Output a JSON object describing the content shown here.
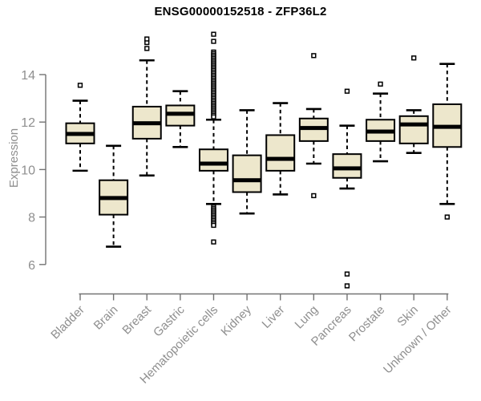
{
  "title": "ENSG00000152518 - ZFP36L2",
  "chart_data": {
    "type": "boxplot",
    "title": "ENSG00000152518 - ZFP36L2",
    "xlabel": "",
    "ylabel": "Expression",
    "ylim": [
      5.0,
      15.8
    ],
    "yticks": [
      6,
      8,
      10,
      12,
      14
    ],
    "grid": false,
    "legend": "none",
    "colors": {
      "box_fill": "#ede7cc",
      "box_stroke": "#000000",
      "median": "#000000",
      "whisker": "#000000",
      "outlier_stroke": "#000000",
      "outlier_fill": "#ffffff",
      "axis_line": "#737373",
      "tick_text": "#8f8f8f",
      "title_text": "#000000",
      "background": "#ffffff"
    },
    "categories": [
      "Bladder",
      "Brain",
      "Breast",
      "Gastric",
      "Hematopoietic cells",
      "Kidney",
      "Liver",
      "Lung",
      "Pancreas",
      "Prostate",
      "Skin",
      "Unknown / Other"
    ],
    "series": [
      {
        "name": "Bladder",
        "whisker_low": 9.95,
        "q1": 11.1,
        "median": 11.5,
        "q3": 11.95,
        "whisker_high": 12.9,
        "outliers": [
          13.55
        ]
      },
      {
        "name": "Brain",
        "whisker_low": 6.75,
        "q1": 8.1,
        "median": 8.8,
        "q3": 9.55,
        "whisker_high": 11.0,
        "outliers": []
      },
      {
        "name": "Breast",
        "whisker_low": 9.75,
        "q1": 11.3,
        "median": 11.95,
        "q3": 12.65,
        "whisker_high": 14.6,
        "outliers": [
          15.1,
          15.35,
          15.5
        ]
      },
      {
        "name": "Gastric",
        "whisker_low": 10.95,
        "q1": 11.85,
        "median": 12.35,
        "q3": 12.7,
        "whisker_high": 13.3,
        "outliers": []
      },
      {
        "name": "Hematopoietic cells",
        "whisker_low": 8.55,
        "q1": 9.95,
        "median": 10.25,
        "q3": 10.85,
        "whisker_high": 12.1,
        "outliers": [
          15.7,
          15.4,
          14.95,
          14.88,
          14.81,
          14.74,
          14.67,
          14.6,
          14.53,
          14.46,
          14.39,
          14.32,
          14.25,
          14.18,
          14.11,
          14.04,
          13.97,
          13.9,
          13.83,
          13.76,
          13.69,
          13.62,
          13.55,
          13.48,
          13.41,
          13.34,
          13.27,
          13.2,
          13.13,
          13.06,
          12.99,
          12.92,
          12.85,
          12.78,
          12.71,
          12.64,
          12.57,
          12.5,
          12.43,
          12.36,
          12.29,
          12.22,
          8.42,
          8.35,
          8.28,
          8.21,
          8.14,
          8.07,
          8.0,
          7.93,
          7.86,
          7.79,
          7.72,
          7.65,
          6.95
        ]
      },
      {
        "name": "Kidney",
        "whisker_low": 8.15,
        "q1": 9.05,
        "median": 9.55,
        "q3": 10.6,
        "whisker_high": 12.5,
        "outliers": []
      },
      {
        "name": "Liver",
        "whisker_low": 8.95,
        "q1": 9.95,
        "median": 10.45,
        "q3": 11.45,
        "whisker_high": 12.8,
        "outliers": []
      },
      {
        "name": "Lung",
        "whisker_low": 10.25,
        "q1": 11.2,
        "median": 11.75,
        "q3": 12.15,
        "whisker_high": 12.55,
        "outliers": [
          14.8,
          8.9
        ]
      },
      {
        "name": "Pancreas",
        "whisker_low": 9.2,
        "q1": 9.65,
        "median": 10.05,
        "q3": 10.65,
        "whisker_high": 11.85,
        "outliers": [
          13.3,
          5.6,
          5.1
        ]
      },
      {
        "name": "Prostate",
        "whisker_low": 10.35,
        "q1": 11.2,
        "median": 11.6,
        "q3": 12.1,
        "whisker_high": 13.2,
        "outliers": [
          13.6
        ]
      },
      {
        "name": "Skin",
        "whisker_low": 10.7,
        "q1": 11.1,
        "median": 11.9,
        "q3": 12.25,
        "whisker_high": 12.5,
        "outliers": [
          14.7
        ]
      },
      {
        "name": "Unknown / Other",
        "whisker_low": 8.55,
        "q1": 10.95,
        "median": 11.8,
        "q3": 12.75,
        "whisker_high": 14.45,
        "outliers": [
          8.0
        ]
      }
    ]
  }
}
